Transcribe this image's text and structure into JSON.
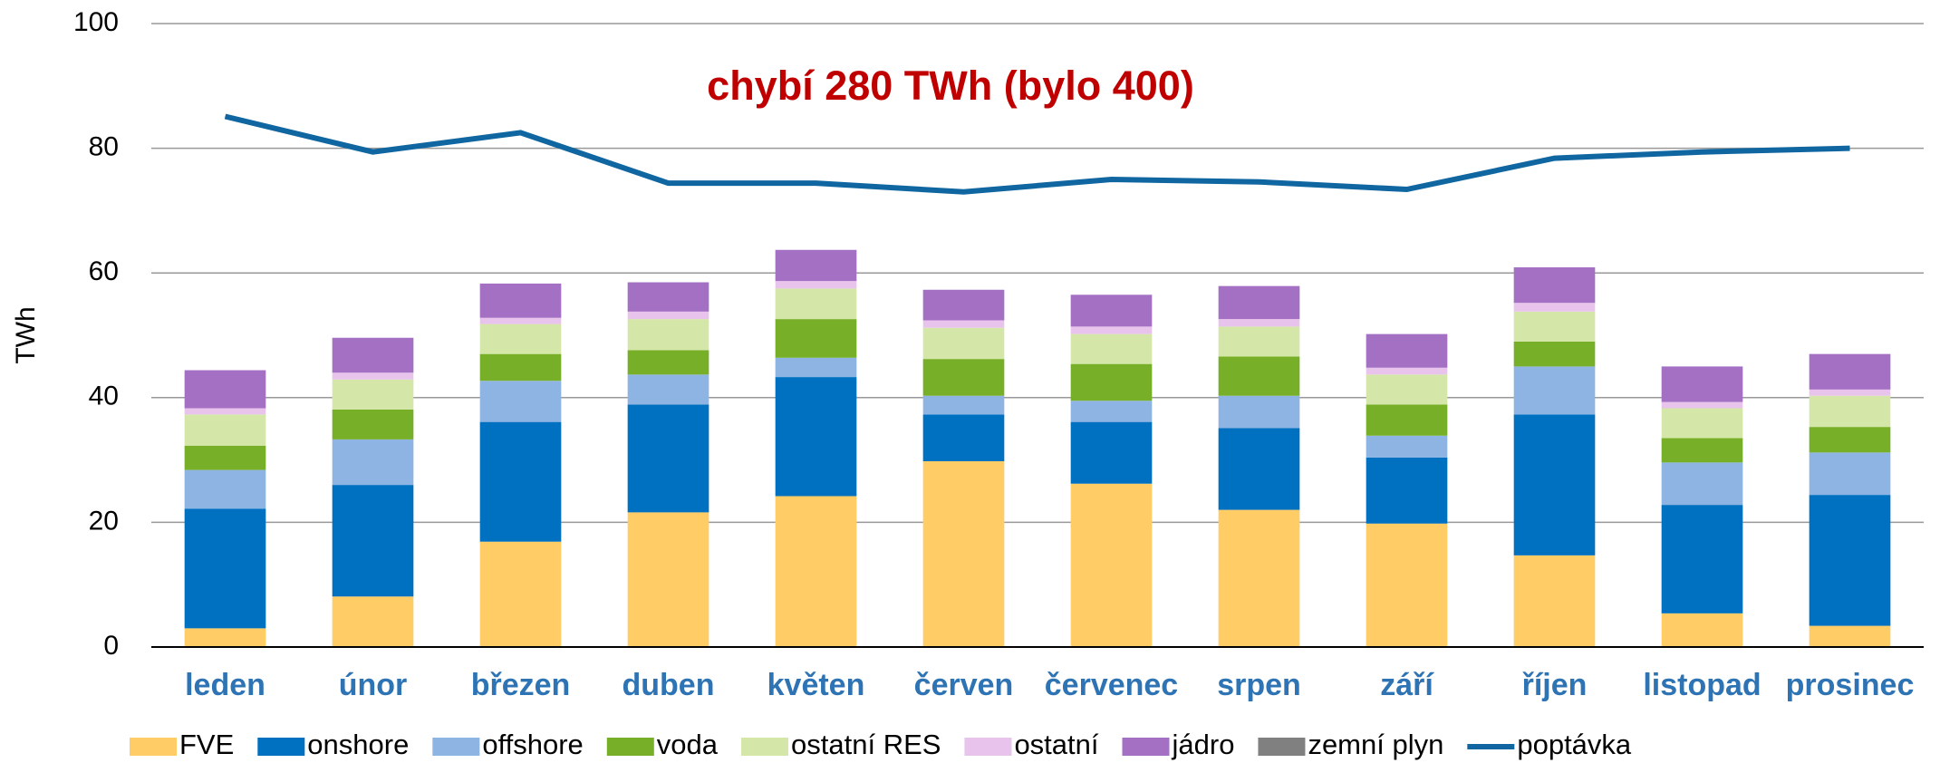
{
  "chart_data": {
    "type": "bar",
    "stacked": true,
    "annotation": "chybí 280 TWh (bylo 400)",
    "y_label": "TWh",
    "categories": [
      "leden",
      "únor",
      "březen",
      "duben",
      "květen",
      "červen",
      "červenec",
      "srpen",
      "září",
      "říjen",
      "listopad",
      "prosinec"
    ],
    "ylim": [
      0,
      100
    ],
    "yticks": [
      0,
      20,
      40,
      60,
      80,
      100
    ],
    "grid": true,
    "legend": "bottom",
    "series": [
      {
        "name": "FVE",
        "color": "#ffcc66",
        "values": [
          3.0,
          8.1,
          16.9,
          21.6,
          24.2,
          29.8,
          26.2,
          22.0,
          19.8,
          14.7,
          5.4,
          3.4
        ]
      },
      {
        "name": "onshore",
        "color": "#0070c0",
        "values": [
          19.2,
          17.9,
          19.2,
          17.3,
          19.1,
          7.5,
          9.9,
          13.1,
          10.6,
          22.6,
          17.4,
          21.0
        ]
      },
      {
        "name": "offshore",
        "color": "#8db4e2",
        "values": [
          6.2,
          7.3,
          6.6,
          4.8,
          3.1,
          3.0,
          3.4,
          5.2,
          3.5,
          7.7,
          6.8,
          6.8
        ]
      },
      {
        "name": "voda",
        "color": "#77b028",
        "values": [
          3.9,
          4.8,
          4.3,
          3.9,
          6.2,
          5.9,
          5.9,
          6.3,
          5.0,
          4.0,
          3.9,
          4.1
        ]
      },
      {
        "name": "ostatní RES",
        "color": "#d4e6a8",
        "values": [
          5.0,
          4.8,
          4.8,
          5.0,
          4.9,
          5.0,
          4.8,
          4.8,
          4.8,
          4.8,
          4.8,
          5.0
        ]
      },
      {
        "name": "ostatní",
        "color": "#e8c4ec",
        "values": [
          1.0,
          1.1,
          1.0,
          1.2,
          1.2,
          1.2,
          1.2,
          1.2,
          1.1,
          1.4,
          1.0,
          1.0
        ]
      },
      {
        "name": "jádro",
        "color": "#a470c4",
        "values": [
          6.1,
          5.6,
          5.5,
          4.7,
          5.0,
          4.9,
          5.1,
          5.3,
          5.4,
          5.7,
          5.7,
          5.7
        ]
      },
      {
        "name": "zemní plyn",
        "color": "#808080",
        "values": [
          0,
          0,
          0,
          0,
          0,
          0,
          0,
          0,
          0,
          0,
          0,
          0
        ]
      },
      {
        "name": "poptávka",
        "type": "line",
        "color": "#1066a0",
        "values": [
          85.1,
          79.4,
          82.5,
          74.4,
          74.4,
          73.0,
          75.0,
          74.6,
          73.4,
          78.4,
          79.4,
          80.0
        ]
      }
    ]
  }
}
